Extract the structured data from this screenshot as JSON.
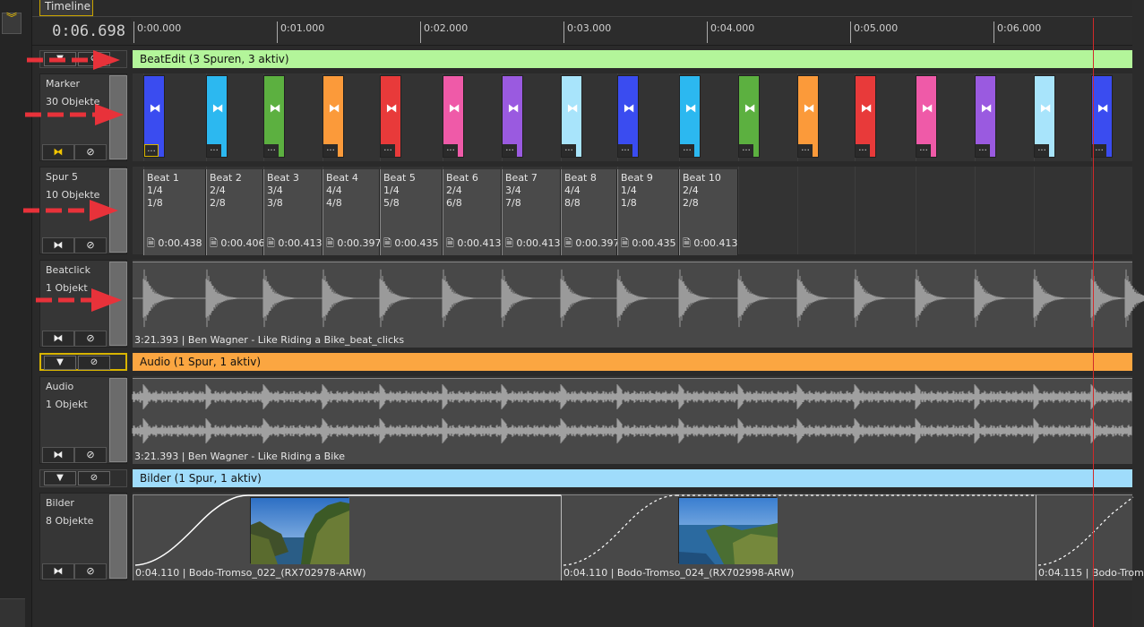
{
  "app": {
    "tab_title": "Timeline",
    "time_readout": "0:06.698"
  },
  "ruler": {
    "labels": [
      "0:00.000",
      "0:01.000",
      "0:02.000",
      "0:03.000",
      "0:04.000",
      "0:05.000",
      "0:06.000"
    ]
  },
  "groups": {
    "beatedit": {
      "label": "BeatEdit  (3 Spuren, 3 aktiv)",
      "color": "#b3f59a"
    },
    "audio": {
      "label": "Audio  (1 Spur, 1 aktiv)",
      "color": "#fba641"
    },
    "bilder": {
      "label": "Bilder  (1 Spur, 1 aktiv)",
      "color": "#9fdcfb"
    }
  },
  "tracks": {
    "marker": {
      "name": "Marker",
      "count": "30 Objekte"
    },
    "spur5": {
      "name": "Spur 5",
      "count": "10 Objekte"
    },
    "beatclick": {
      "name": "Beatclick",
      "count": "1 Objekt",
      "clip_label": "3:21.393 | Ben Wagner - Like Riding a Bike_beat_clicks"
    },
    "audio": {
      "name": "Audio",
      "count": "1 Objekt",
      "clip_label": "3:21.393 | Ben Wagner - Like Riding a Bike"
    },
    "bilder": {
      "name": "Bilder",
      "count": "8 Objekte",
      "clips": [
        {
          "label": "0:04.110 | Bodo-Tromso_022_(RX702978-ARW)"
        },
        {
          "label": "0:04.110 | Bodo-Tromso_024_(RX702998-ARW)"
        },
        {
          "label": "0:04.115 | Bodo-Trom"
        }
      ]
    }
  },
  "markers": {
    "colors": [
      "#3a4cf0",
      "#2cb8f0",
      "#5cb040",
      "#fb9a3a",
      "#e83a3a",
      "#ef5aa8",
      "#9a5ae0",
      "#a8e4fb",
      "#3a4cf0",
      "#2cb8f0",
      "#5cb040",
      "#fb9a3a",
      "#e83a3a",
      "#ef5aa8",
      "#9a5ae0",
      "#a8e4fb",
      "#3a4cf0"
    ],
    "glyph": "⧓",
    "more": "..."
  },
  "beats": [
    {
      "name": "Beat 1",
      "a": "1/4",
      "b": "1/8",
      "dur": "0:00.438"
    },
    {
      "name": "Beat 2",
      "a": "2/4",
      "b": "2/8",
      "dur": "0:00.406"
    },
    {
      "name": "Beat 3",
      "a": "3/4",
      "b": "3/8",
      "dur": "0:00.413"
    },
    {
      "name": "Beat 4",
      "a": "4/4",
      "b": "4/8",
      "dur": "0:00.397"
    },
    {
      "name": "Beat 5",
      "a": "1/4",
      "b": "5/8",
      "dur": "0:00.435"
    },
    {
      "name": "Beat 6",
      "a": "2/4",
      "b": "6/8",
      "dur": "0:00.413"
    },
    {
      "name": "Beat 7",
      "a": "3/4",
      "b": "7/8",
      "dur": "0:00.413"
    },
    {
      "name": "Beat 8",
      "a": "4/4",
      "b": "8/8",
      "dur": "0:00.397"
    },
    {
      "name": "Beat 9",
      "a": "1/4",
      "b": "1/8",
      "dur": "0:00.435"
    },
    {
      "name": "Beat 10",
      "a": "2/4",
      "b": "2/8",
      "dur": "0:00.413"
    }
  ],
  "icons": {
    "collapse": "chevron-double-down-icon",
    "expand": "triangle-down-icon",
    "mute": "circle-slash-icon",
    "bowtie": "bowtie-icon",
    "doc": "document-icon"
  },
  "glyphs": {
    "expand": "▼",
    "mute": "⊘",
    "bowtie": "⧓",
    "doc": "🗎",
    "collapse": "︾"
  }
}
